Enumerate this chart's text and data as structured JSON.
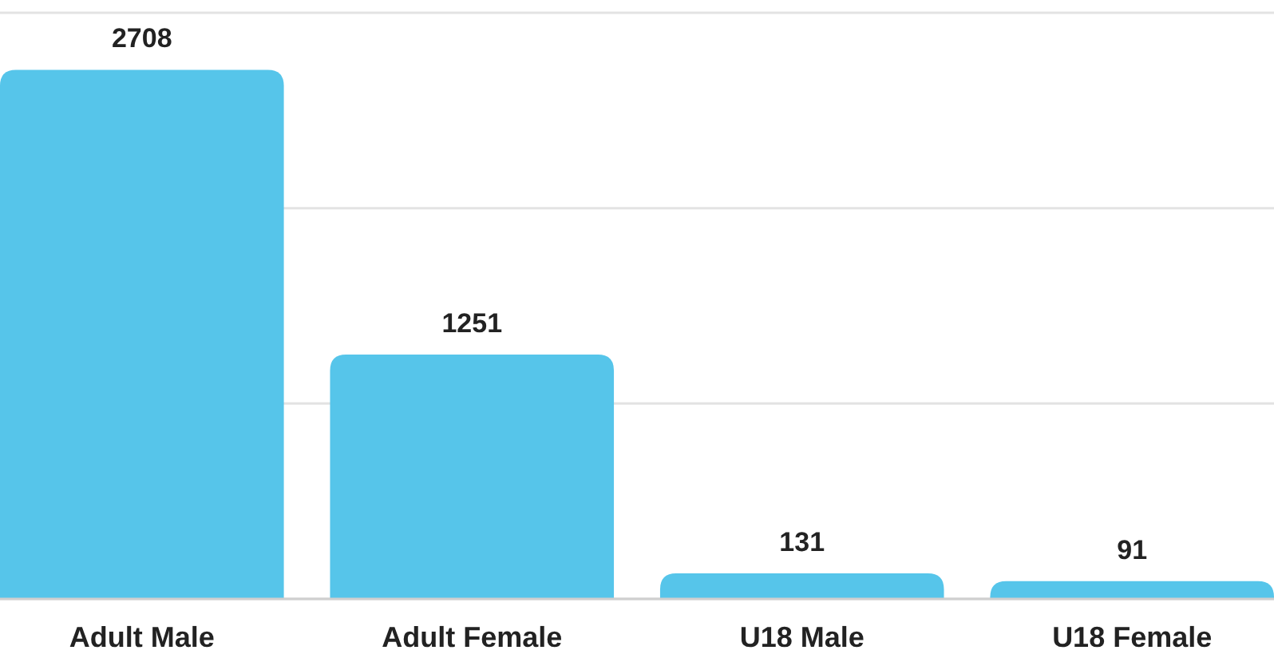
{
  "chart_data": {
    "type": "bar",
    "categories": [
      "Adult Male",
      "Adult Female",
      "U18 Male",
      "U18 Female"
    ],
    "values": [
      2708,
      1251,
      131,
      91
    ],
    "color": "#56c5ea",
    "ylim": [
      0,
      3000
    ],
    "yticks": [
      {
        "value": 0,
        "label": null
      },
      {
        "value": 1000,
        "label": null
      },
      {
        "value": 2000,
        "label": null
      },
      {
        "value": 3000,
        "label": null
      }
    ],
    "tick_labels": "x",
    "grid": "y",
    "data_labels": true
  }
}
